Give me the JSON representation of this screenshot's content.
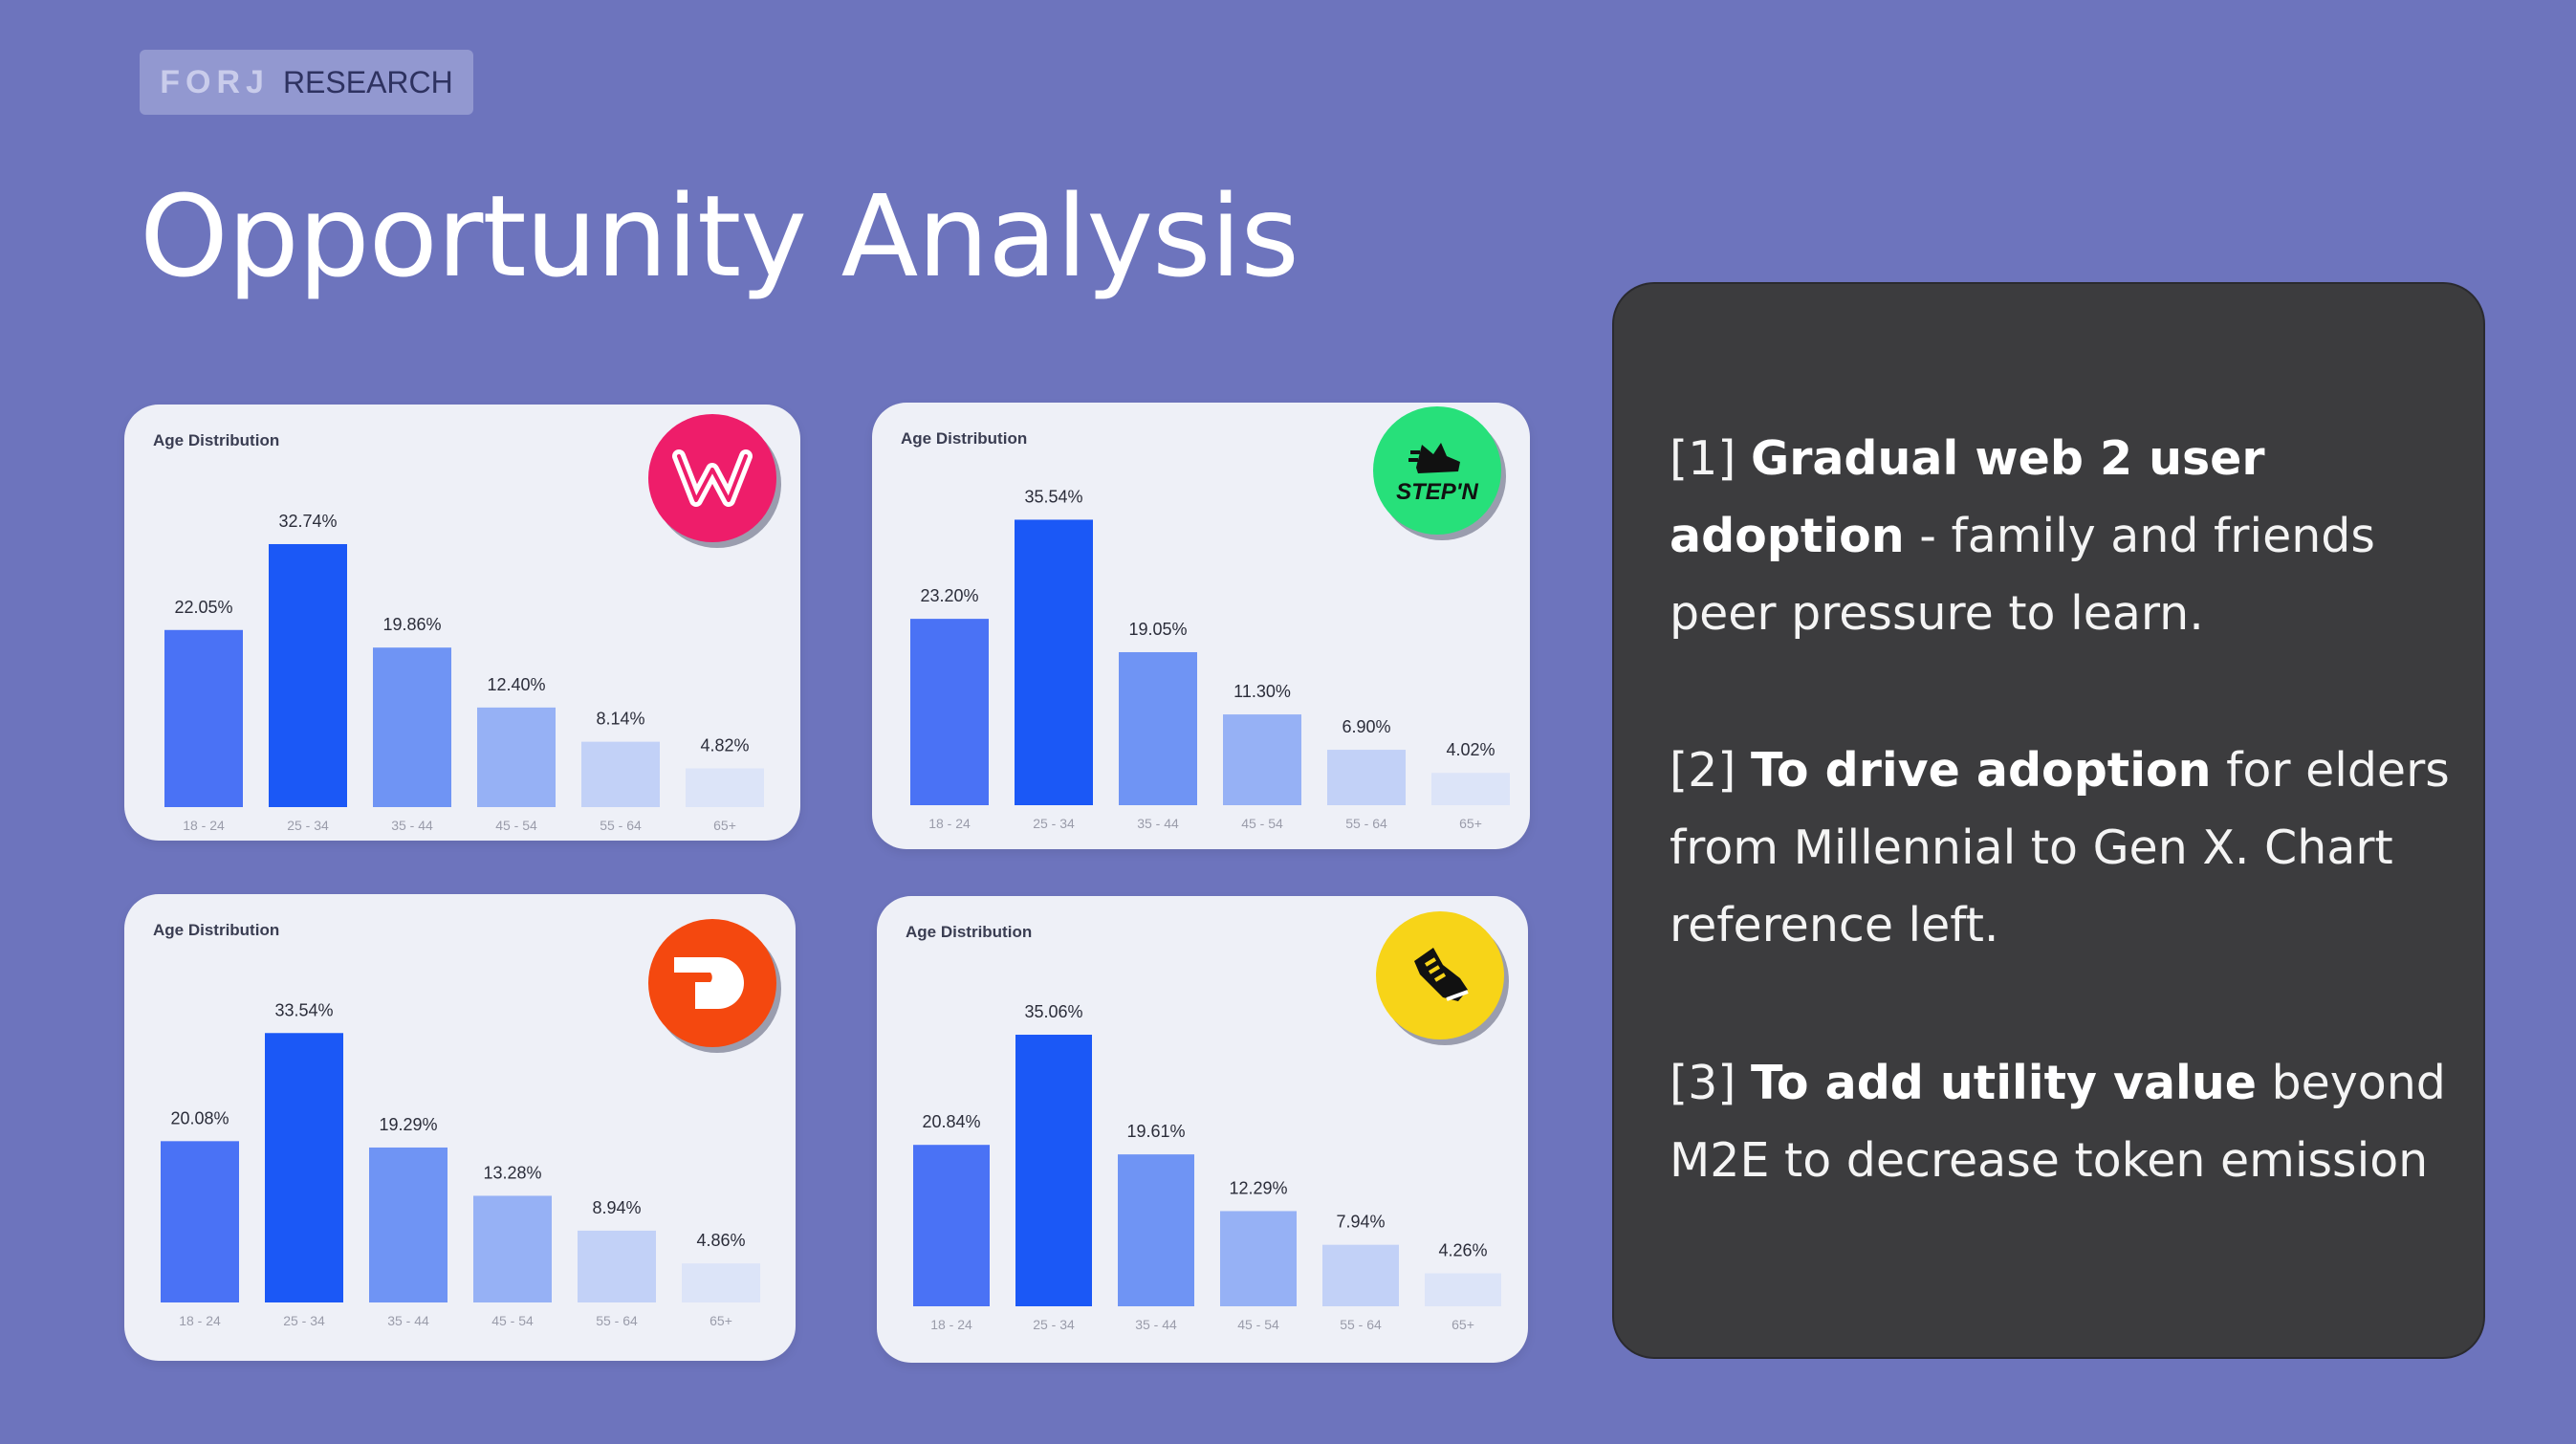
{
  "brand": {
    "mark": "FORJ",
    "word": "RESEARCH"
  },
  "title": "Opportunity Analysis",
  "colors": {
    "background": "#6d74bd",
    "bar_shades": [
      "#4a72f5",
      "#1b58f6",
      "#6f94f4",
      "#96b1f5",
      "#c2d1f7",
      "#dce4f8"
    ],
    "panel": "#3c3c3e"
  },
  "chart_data": [
    {
      "type": "bar",
      "label": "Age Distribution",
      "logo": "pink-w-logo-icon",
      "categories": [
        "18 - 24",
        "25 - 34",
        "35 - 44",
        "45 - 54",
        "55 - 64",
        "65+"
      ],
      "values": [
        22.05,
        32.74,
        19.86,
        12.4,
        8.14,
        4.82
      ],
      "value_labels": [
        "22.05%",
        "32.74%",
        "19.86%",
        "12.40%",
        "8.14%",
        "4.82%"
      ]
    },
    {
      "type": "bar",
      "label": "Age Distribution",
      "logo": "stepn-logo-icon",
      "logo_text": "STEP'N",
      "categories": [
        "18 - 24",
        "25 - 34",
        "35 - 44",
        "45 - 54",
        "55 - 64",
        "65+"
      ],
      "values": [
        23.2,
        35.54,
        19.05,
        11.3,
        6.9,
        4.02
      ],
      "value_labels": [
        "23.20%",
        "35.54%",
        "19.05%",
        "11.30%",
        "6.90%",
        "4.02%"
      ]
    },
    {
      "type": "bar",
      "label": "Age Distribution",
      "logo": "orange-d-logo-icon",
      "categories": [
        "18 - 24",
        "25 - 34",
        "35 - 44",
        "45 - 54",
        "55 - 64",
        "65+"
      ],
      "values": [
        20.08,
        33.54,
        19.29,
        13.28,
        8.94,
        4.86
      ],
      "value_labels": [
        "20.08%",
        "33.54%",
        "19.29%",
        "13.28%",
        "8.94%",
        "4.86%"
      ]
    },
    {
      "type": "bar",
      "label": "Age Distribution",
      "logo": "yellow-sneaker-logo-icon",
      "categories": [
        "18 - 24",
        "25 - 34",
        "35 - 44",
        "45 - 54",
        "55 - 64",
        "65+"
      ],
      "values": [
        20.84,
        35.06,
        19.61,
        12.29,
        7.94,
        4.26
      ],
      "value_labels": [
        "20.84%",
        "35.06%",
        "19.61%",
        "12.29%",
        "7.94%",
        "4.26%"
      ]
    }
  ],
  "panel": {
    "points": [
      {
        "prefix": "[1] ",
        "bold": "Gradual web 2 user adoption",
        "rest": " - family and friends peer pressure to learn."
      },
      {
        "prefix": "[2] ",
        "bold": "To drive adoption",
        "rest": " for elders from Millennial to Gen X. Chart reference left."
      },
      {
        "prefix": "[3] ",
        "bold": "To add utility value",
        "rest": " beyond M2E to decrease token emission"
      }
    ]
  }
}
